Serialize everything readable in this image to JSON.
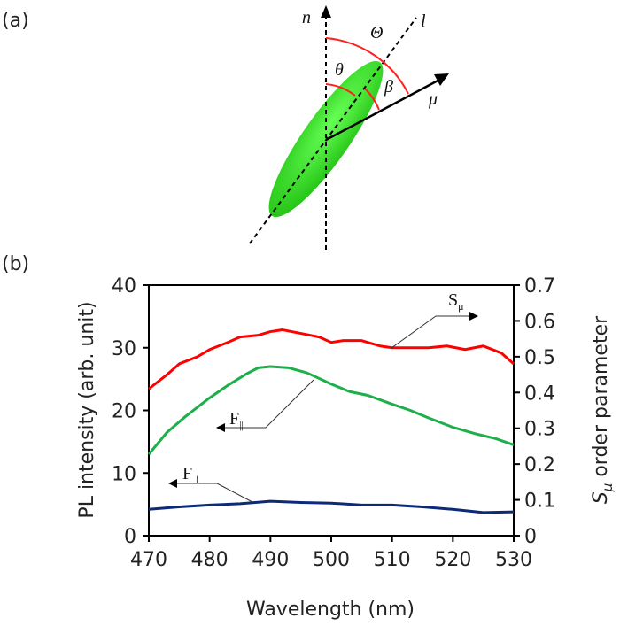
{
  "panel_a": {
    "label": "(a)",
    "n": "n",
    "l": "l",
    "Theta": "Θ",
    "theta": "θ",
    "beta": "β",
    "mu": "μ"
  },
  "chart_data": {
    "panel_label": "(b)",
    "type": "line",
    "xlabel": "Wavelength (nm)",
    "ylabel": "PL intensity (arb. unit)",
    "y2label_main": "S",
    "y2label_sub": "μ",
    "y2label_rest": " order parameter",
    "xlim": [
      470,
      530
    ],
    "ylim": [
      0,
      40
    ],
    "y2lim": [
      0,
      0.7
    ],
    "xticks": [
      470,
      480,
      490,
      500,
      510,
      520,
      530
    ],
    "yticks": [
      0,
      10,
      20,
      30,
      40
    ],
    "y2ticks": [
      "0",
      "0.1",
      "0.2",
      "0.3",
      "0.4",
      "0.5",
      "0.6",
      "0.7"
    ],
    "series": [
      {
        "name": "Sμ",
        "label_main": "S",
        "label_sub": "μ",
        "axis": "right",
        "color": "#ff0000",
        "x": [
          470,
          473,
          475,
          478,
          480,
          483,
          485,
          488,
          490,
          492,
          495,
          498,
          500,
          502,
          505,
          508,
          510,
          513,
          516,
          519,
          522,
          525,
          528,
          530
        ],
        "y": [
          0.41,
          0.45,
          0.48,
          0.5,
          0.52,
          0.54,
          0.555,
          0.56,
          0.57,
          0.575,
          0.565,
          0.555,
          0.54,
          0.545,
          0.545,
          0.53,
          0.525,
          0.525,
          0.525,
          0.53,
          0.52,
          0.53,
          0.51,
          0.48
        ]
      },
      {
        "name": "F∥",
        "label_main": "F",
        "label_sub": "||",
        "axis": "left",
        "color": "#1db04a",
        "x": [
          470,
          473,
          476,
          480,
          483,
          486,
          488,
          490,
          493,
          496,
          500,
          503,
          506,
          510,
          513,
          516,
          520,
          524,
          527,
          530
        ],
        "y": [
          13,
          16.5,
          19,
          22,
          24,
          25.8,
          26.8,
          27,
          26.8,
          26,
          24.2,
          23,
          22.4,
          21,
          20,
          18.8,
          17.3,
          16.2,
          15.5,
          14.5
        ]
      },
      {
        "name": "F⊥",
        "label_main": "F",
        "label_sub": "⊥",
        "axis": "left",
        "color": "#0d2a78",
        "x": [
          470,
          475,
          480,
          485,
          490,
          495,
          500,
          505,
          510,
          515,
          520,
          525,
          530
        ],
        "y": [
          4.2,
          4.6,
          4.9,
          5.1,
          5.5,
          5.3,
          5.2,
          4.9,
          4.9,
          4.6,
          4.2,
          3.7,
          3.8
        ]
      }
    ]
  }
}
